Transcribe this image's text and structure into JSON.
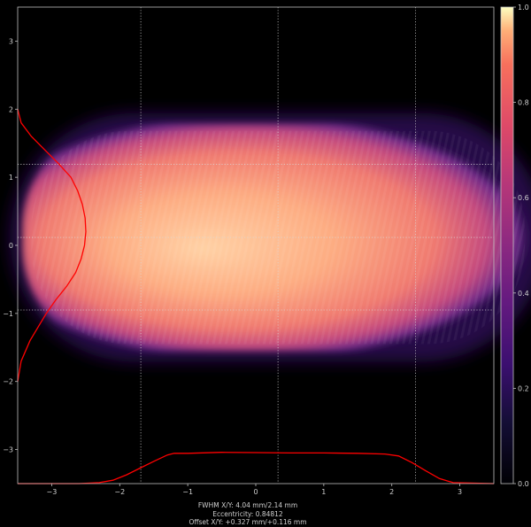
{
  "chart_data": {
    "type": "heatmap",
    "title": "",
    "xlabel": "",
    "ylabel": "",
    "xlim": [
      -3.5,
      3.5
    ],
    "ylim": [
      -3.5,
      3.5
    ],
    "x_ticks": [
      -3,
      -2,
      -1,
      0,
      1,
      2,
      3
    ],
    "y_ticks": [
      3,
      2,
      1,
      0,
      -1,
      -2,
      -3
    ],
    "colorbar": {
      "colormap": "magma",
      "range": [
        0.0,
        1.0
      ],
      "ticks": [
        "1.0",
        "0.8",
        "0.6",
        "0.4",
        "0.2",
        "0.0"
      ]
    },
    "beam": {
      "center_x_mm": 0.327,
      "center_y_mm": 0.116,
      "fwhm_x_mm": 4.04,
      "fwhm_y_mm": 2.14
    },
    "guide_lines": {
      "vertical_mm": [
        -1.69,
        0.327,
        2.35
      ],
      "horizontal_mm": [
        1.19,
        0.116,
        -0.95
      ]
    },
    "profiles": {
      "color": "#ff0000",
      "horizontal": {
        "x": [
          -3.5,
          -2.6,
          -2.3,
          -2.1,
          -1.9,
          -1.7,
          -1.5,
          -1.3,
          -1.2,
          -1.0,
          -0.5,
          0.0,
          0.5,
          1.0,
          1.5,
          1.9,
          2.1,
          2.3,
          2.5,
          2.7,
          2.9,
          3.5
        ],
        "y": [
          0.0,
          0.0,
          0.03,
          0.1,
          0.26,
          0.46,
          0.66,
          0.85,
          0.9,
          0.9,
          0.93,
          0.92,
          0.91,
          0.91,
          0.9,
          0.88,
          0.82,
          0.62,
          0.38,
          0.15,
          0.03,
          0.0
        ]
      },
      "vertical": {
        "y": [
          2.0,
          1.8,
          1.6,
          1.4,
          1.2,
          1.0,
          0.8,
          0.6,
          0.4,
          0.2,
          0.0,
          -0.2,
          -0.4,
          -0.6,
          -0.8,
          -1.0,
          -1.2,
          -1.4,
          -1.7,
          -2.0
        ],
        "x": [
          0.0,
          0.05,
          0.2,
          0.4,
          0.6,
          0.78,
          0.88,
          0.95,
          0.99,
          1.0,
          0.98,
          0.93,
          0.85,
          0.72,
          0.56,
          0.42,
          0.3,
          0.18,
          0.05,
          0.0
        ]
      }
    }
  },
  "caption": {
    "fwhm": "FWHM X/Y: 4.04 mm/2.14 mm",
    "eccentricity": "Eccentricity: 0.84812",
    "offset": "Offset X/Y: +0.327 mm/+0.116 mm"
  },
  "colors": {
    "background": "#000000",
    "axis": "#bfbfbf",
    "guide": "#d9d9d9"
  }
}
